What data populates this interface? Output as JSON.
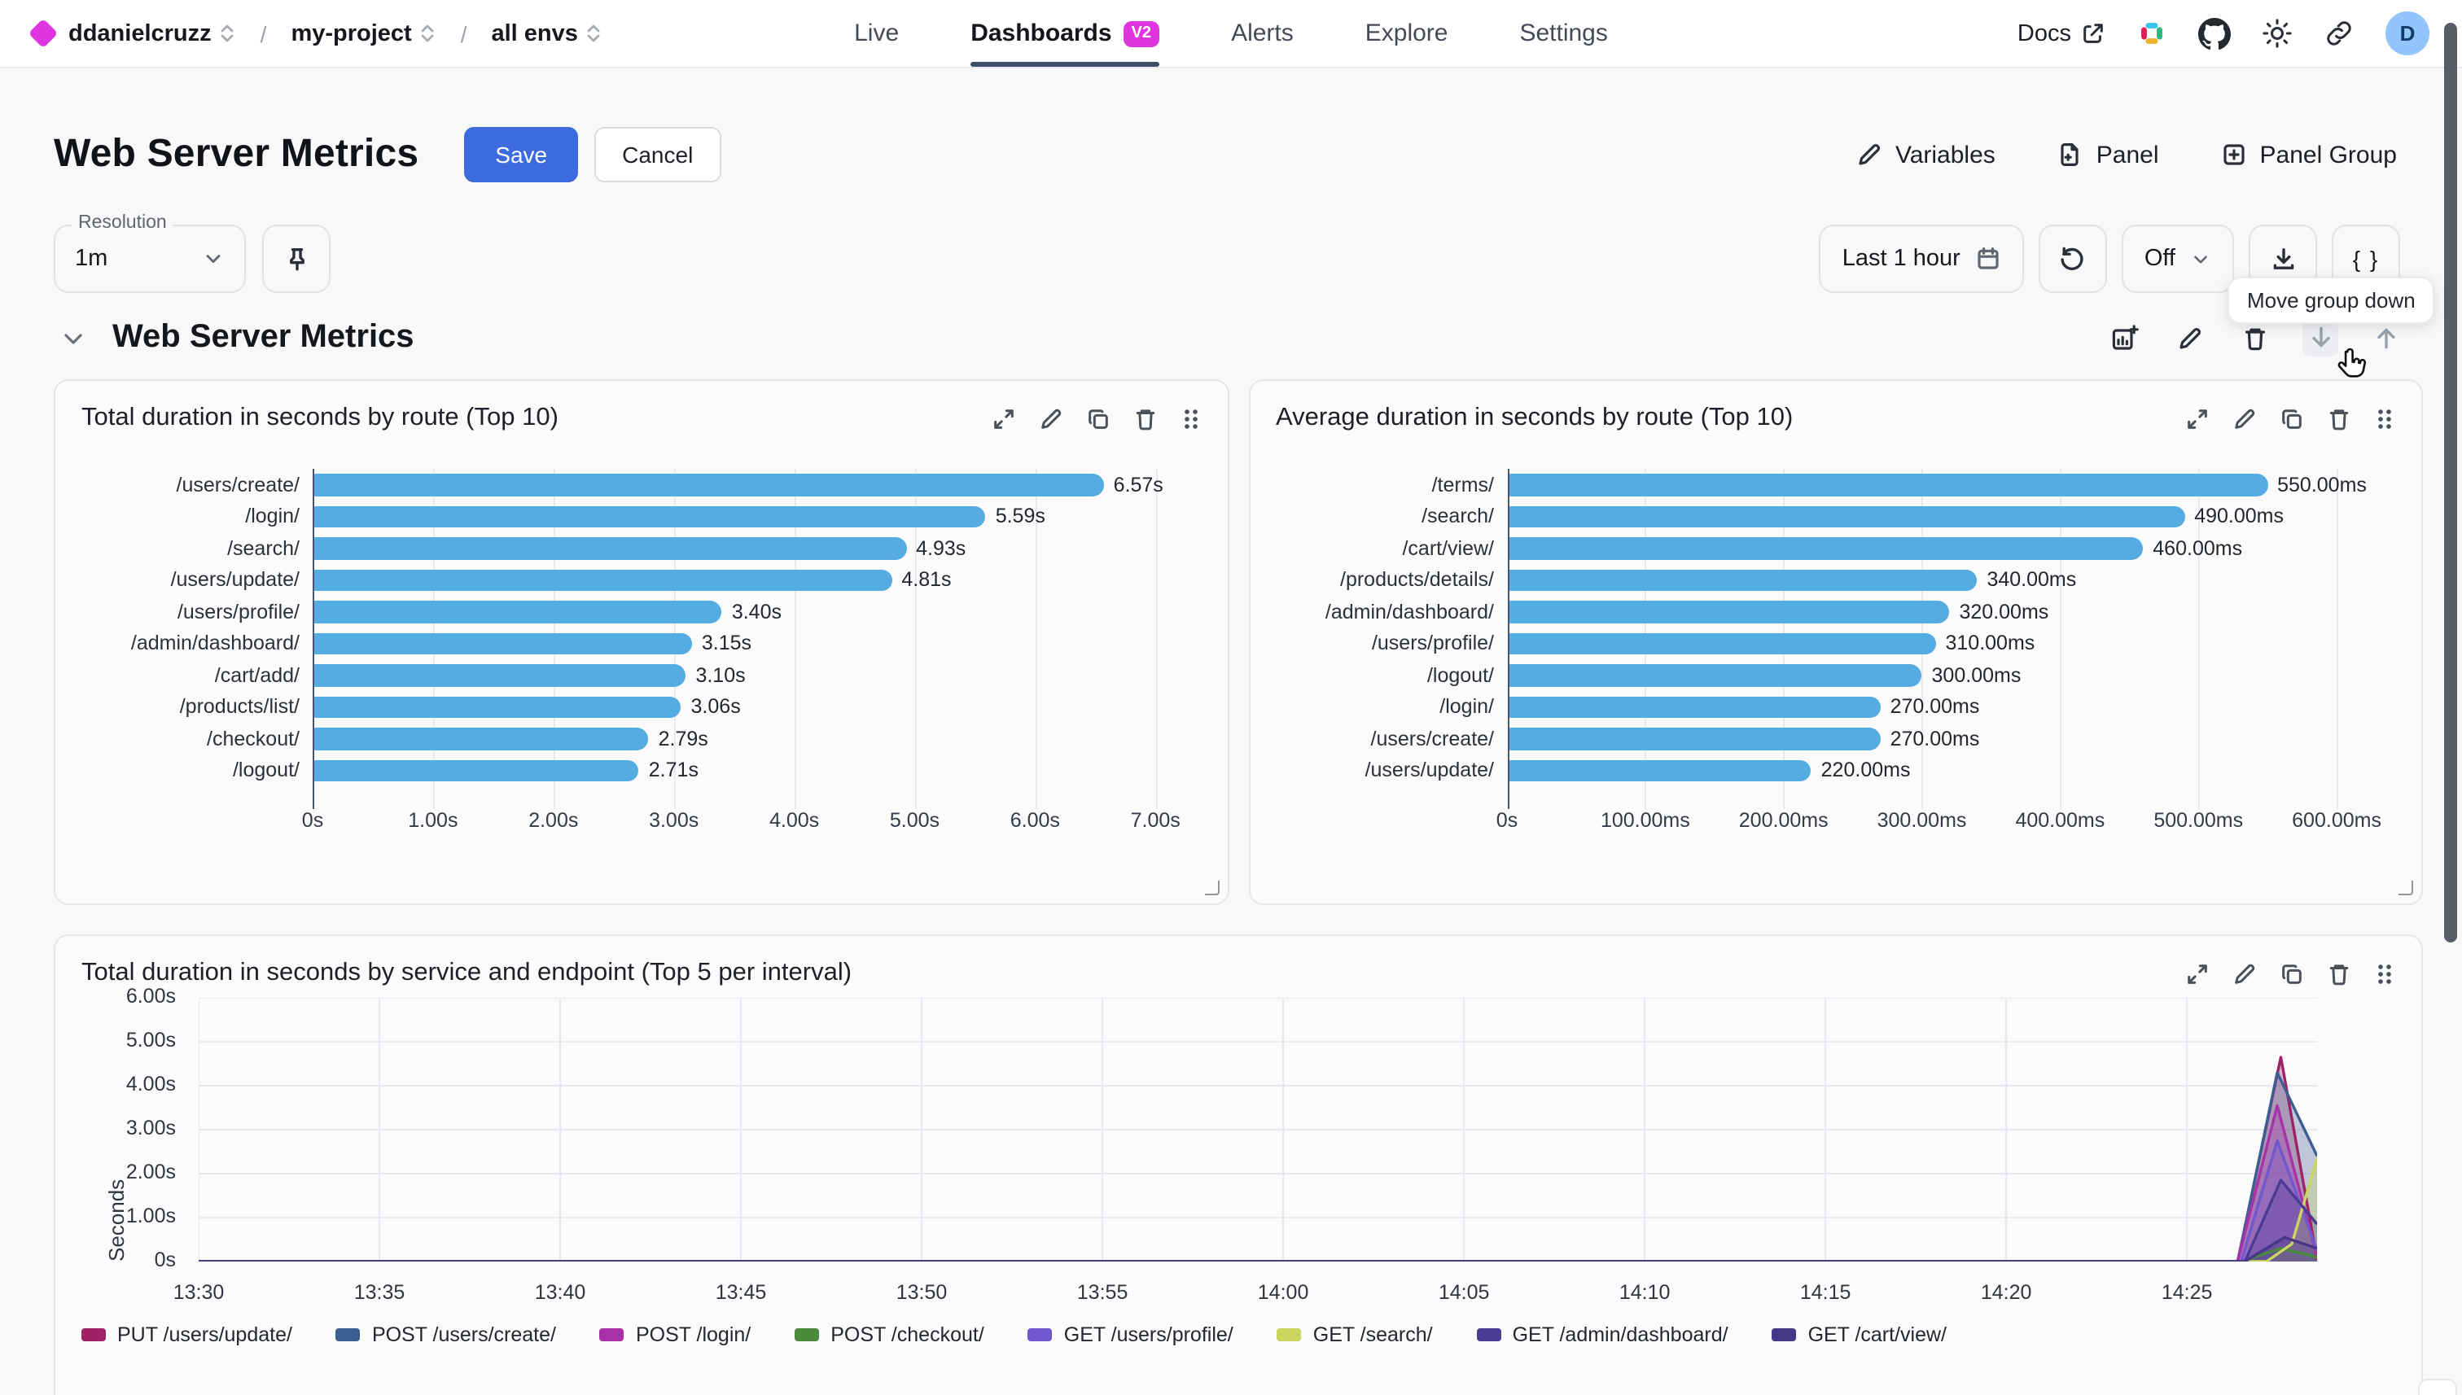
{
  "nav": {
    "breadcrumb": [
      {
        "label": "ddanielcruzz"
      },
      {
        "label": "my-project"
      },
      {
        "label": "all envs"
      }
    ],
    "tabs": [
      {
        "label": "Live"
      },
      {
        "label": "Dashboards",
        "badge": "V2",
        "active": true
      },
      {
        "label": "Alerts"
      },
      {
        "label": "Explore"
      },
      {
        "label": "Settings"
      }
    ],
    "docs_label": "Docs",
    "avatar_initial": "D"
  },
  "header": {
    "title": "Web Server Metrics",
    "save_label": "Save",
    "cancel_label": "Cancel",
    "variables_label": "Variables",
    "panel_label": "Panel",
    "panel_group_label": "Panel Group"
  },
  "toolbar": {
    "resolution_label": "Resolution",
    "resolution_value": "1m",
    "time_range": "Last 1 hour",
    "refresh_value": "Off",
    "braces_label": "{ }"
  },
  "tooltip": {
    "text": "Move group down"
  },
  "group": {
    "title": "Web Server Metrics"
  },
  "colors": {
    "brand_magenta": "#DF35DF",
    "accent_blue": "#3B6BDC",
    "bar_blue": "#55ACE2",
    "active_tab_underline": "#3E4D66",
    "avatar_bg": "#93C5FD"
  },
  "icons": {
    "topbar": [
      "external-link-icon",
      "slack-icon",
      "github-icon",
      "theme-sun-icon",
      "share-link-icon"
    ],
    "toolbar": [
      "pin-icon",
      "calendar-icon",
      "refresh-icon",
      "chevron-down-icon",
      "download-icon",
      "braces-icon"
    ],
    "group_actions": [
      "add-chart-icon",
      "edit-icon",
      "delete-icon",
      "move-down-icon",
      "move-up-icon"
    ],
    "panel_actions": [
      "expand-icon",
      "edit-icon",
      "duplicate-icon",
      "delete-icon",
      "drag-handle-icon"
    ]
  },
  "chart_data": [
    {
      "type": "bar",
      "orientation": "horizontal",
      "title": "Total duration in seconds by route (Top 10)",
      "categories": [
        "/users/create/",
        "/login/",
        "/search/",
        "/users/update/",
        "/users/profile/",
        "/admin/dashboard/",
        "/cart/add/",
        "/products/list/",
        "/checkout/",
        "/logout/"
      ],
      "values": [
        6.57,
        5.59,
        4.93,
        4.81,
        3.4,
        3.15,
        3.1,
        3.06,
        2.79,
        2.71
      ],
      "value_labels": [
        "6.57s",
        "5.59s",
        "4.93s",
        "4.81s",
        "3.40s",
        "3.15s",
        "3.10s",
        "3.06s",
        "2.79s",
        "2.71s"
      ],
      "x_ticks": [
        {
          "v": 0,
          "label": "0s"
        },
        {
          "v": 1,
          "label": "1.00s"
        },
        {
          "v": 2,
          "label": "2.00s"
        },
        {
          "v": 3,
          "label": "3.00s"
        },
        {
          "v": 4,
          "label": "4.00s"
        },
        {
          "v": 5,
          "label": "5.00s"
        },
        {
          "v": 6,
          "label": "6.00s"
        },
        {
          "v": 7,
          "label": "7.00s"
        }
      ],
      "xlim": [
        0,
        7.35
      ],
      "bar_color": "#55ACE2",
      "grid": true
    },
    {
      "type": "bar",
      "orientation": "horizontal",
      "title": "Average duration in seconds by route (Top 10)",
      "categories": [
        "/terms/",
        "/search/",
        "/cart/view/",
        "/products/details/",
        "/admin/dashboard/",
        "/users/profile/",
        "/logout/",
        "/login/",
        "/users/create/",
        "/users/update/"
      ],
      "values": [
        550,
        490,
        460,
        340,
        320,
        310,
        300,
        270,
        270,
        220
      ],
      "value_labels": [
        "550.00ms",
        "490.00ms",
        "460.00ms",
        "340.00ms",
        "320.00ms",
        "310.00ms",
        "300.00ms",
        "270.00ms",
        "270.00ms",
        "220.00ms"
      ],
      "x_ticks": [
        {
          "v": 0,
          "label": "0s"
        },
        {
          "v": 100,
          "label": "100.00ms"
        },
        {
          "v": 200,
          "label": "200.00ms"
        },
        {
          "v": 300,
          "label": "300.00ms"
        },
        {
          "v": 400,
          "label": "400.00ms"
        },
        {
          "v": 500,
          "label": "500.00ms"
        },
        {
          "v": 600,
          "label": "600.00ms"
        }
      ],
      "xlim": [
        0,
        640
      ],
      "bar_color": "#55ACE2",
      "grid": true
    },
    {
      "type": "area",
      "title": "Total duration in seconds by service and endpoint (Top 5 per interval)",
      "ylabel": "Seconds",
      "ylim": [
        0,
        6
      ],
      "y_ticks": [
        {
          "v": 0,
          "label": "0s"
        },
        {
          "v": 1,
          "label": "1.00s"
        },
        {
          "v": 2,
          "label": "2.00s"
        },
        {
          "v": 3,
          "label": "3.00s"
        },
        {
          "v": 4,
          "label": "4.00s"
        },
        {
          "v": 5,
          "label": "5.00s"
        },
        {
          "v": 6,
          "label": "6.00s"
        }
      ],
      "x_tick_labels": [
        "13:30",
        "13:35",
        "13:40",
        "13:45",
        "13:50",
        "13:55",
        "14:00",
        "14:05",
        "14:10",
        "14:15",
        "14:20",
        "14:25"
      ],
      "x_minutes_per_tick": 5,
      "x_domain_minutes": 58.6,
      "grid": true,
      "legend_position": "bottom",
      "series": [
        {
          "name": "PUT /users/update/",
          "color": "#9E2264",
          "points": [
            [
              0,
              0
            ],
            [
              56.4,
              0
            ],
            [
              57.6,
              4.65
            ],
            [
              58.6,
              0.05
            ]
          ]
        },
        {
          "name": "POST /users/create/",
          "color": "#3D5E90",
          "points": [
            [
              0,
              0
            ],
            [
              56.4,
              0
            ],
            [
              57.5,
              4.3
            ],
            [
              58.6,
              2.4
            ]
          ]
        },
        {
          "name": "POST /login/",
          "color": "#A832A8",
          "points": [
            [
              0,
              0
            ],
            [
              56.4,
              0
            ],
            [
              57.5,
              3.55
            ],
            [
              58.6,
              0.1
            ]
          ]
        },
        {
          "name": "POST /checkout/",
          "color": "#4A8A3C",
          "points": [
            [
              0,
              0
            ],
            [
              56.5,
              0
            ],
            [
              57.6,
              0.3
            ],
            [
              58.6,
              0.1
            ]
          ]
        },
        {
          "name": "GET /users/profile/",
          "color": "#7158CF",
          "points": [
            [
              0,
              0
            ],
            [
              56.5,
              0
            ],
            [
              57.5,
              2.75
            ],
            [
              58.6,
              0.25
            ]
          ]
        },
        {
          "name": "GET /search/",
          "color": "#CCD65F",
          "points": [
            [
              0,
              0
            ],
            [
              57.2,
              0
            ],
            [
              57.9,
              0.4
            ],
            [
              58.6,
              2.35
            ]
          ]
        },
        {
          "name": "GET /admin/dashboard/",
          "color": "#4B3B95",
          "points": [
            [
              0,
              0
            ],
            [
              56.6,
              0
            ],
            [
              57.6,
              1.85
            ],
            [
              58.6,
              0.85
            ]
          ]
        },
        {
          "name": "GET /cart/view/",
          "color": "#453687",
          "points": [
            [
              0,
              0
            ],
            [
              56.6,
              0
            ],
            [
              57.7,
              0.55
            ],
            [
              58.6,
              0.3
            ]
          ]
        }
      ]
    }
  ]
}
